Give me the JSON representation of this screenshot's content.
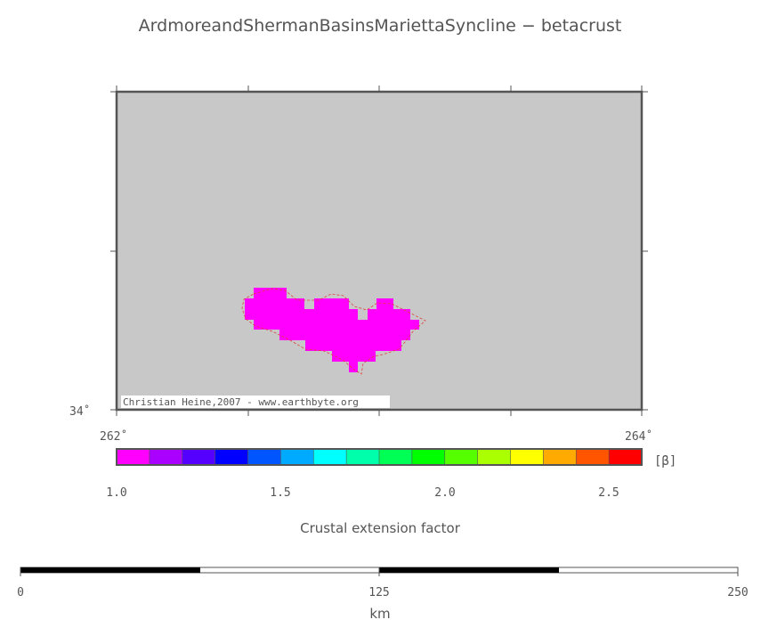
{
  "title": "ArdmoreandShermanBasinsMariettaSyncline − betacrust",
  "map": {
    "background_color": "#c8c8c8",
    "anomaly_color": "#ff00ff",
    "outline_color": "#e04040",
    "lat_label": "34˚",
    "lon_labels": [
      "262˚",
      "264˚"
    ],
    "credit": "Christian Heine,2007 - www.earthbyte.org"
  },
  "colorbar": {
    "unit_label": "[β]",
    "ticks": [
      "1.0",
      "1.5",
      "2.0",
      "2.5"
    ],
    "caption": "Crustal extension factor",
    "range": [
      1.0,
      2.6
    ],
    "colors": [
      "#ff00ff",
      "#aa00ff",
      "#5500ff",
      "#0000ff",
      "#0055ff",
      "#00aaff",
      "#00ffff",
      "#00ffaa",
      "#00ff55",
      "#00ff00",
      "#55ff00",
      "#aaff00",
      "#ffff00",
      "#ffaa00",
      "#ff5500",
      "#ff0000"
    ]
  },
  "scalebar": {
    "ticks": [
      "0",
      "125",
      "250"
    ],
    "unit": "km"
  }
}
